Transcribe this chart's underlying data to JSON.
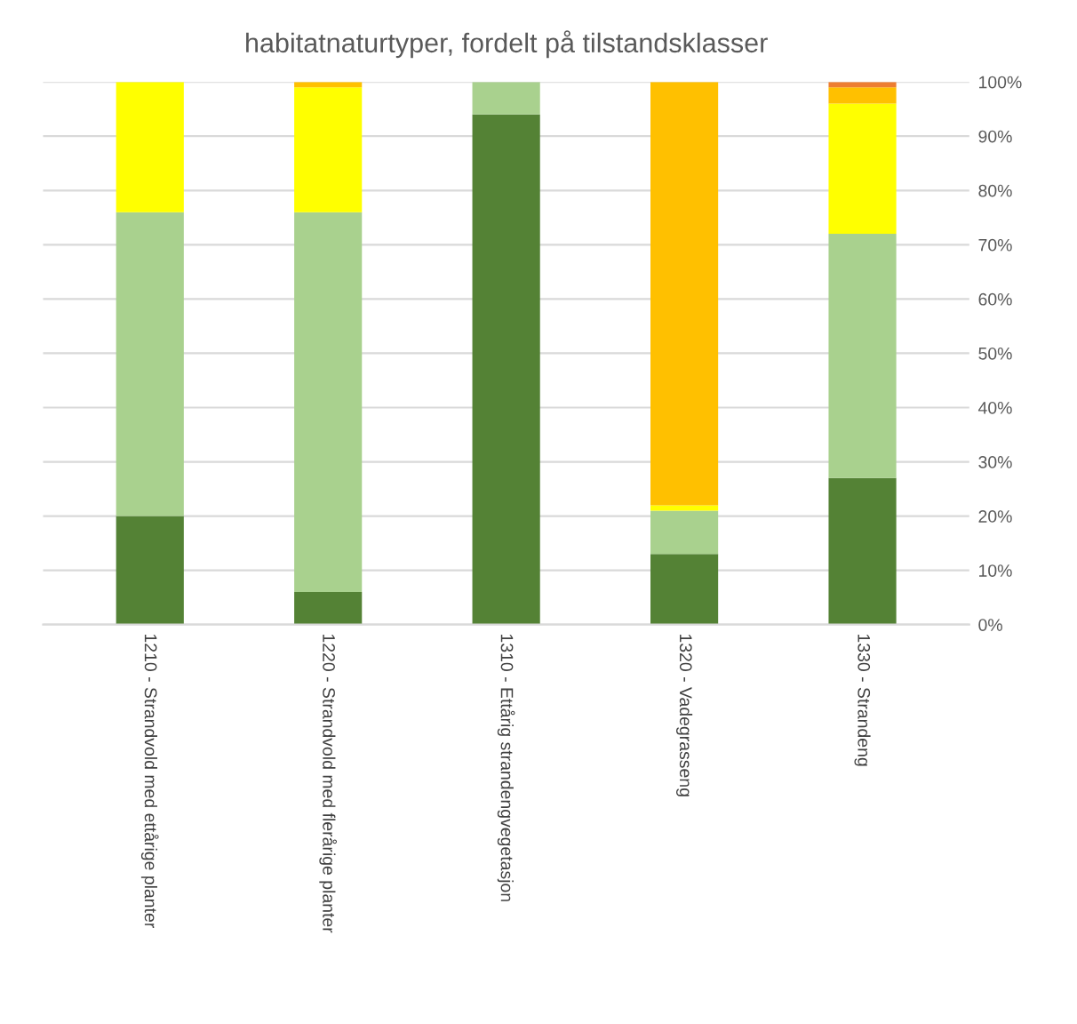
{
  "chart_data": {
    "type": "bar",
    "stacked": true,
    "title": "habitatnaturtyper, fordelt på tilstandsklasser",
    "categories": [
      "1210 - Strandvold med ettårige planter",
      "1220 - Strandvold med flerårige planter",
      "1310 - Ettårig strandengvegetasjon",
      "1320 - Vadegrasseng",
      "1330 - Strandeng"
    ],
    "series": [
      {
        "color": "#548235",
        "values": [
          20,
          6,
          94,
          13,
          27
        ]
      },
      {
        "color": "#a9d18e",
        "values": [
          56,
          70,
          6,
          8,
          45
        ]
      },
      {
        "color": "#ffff00",
        "values": [
          24,
          23,
          0,
          1,
          24
        ]
      },
      {
        "color": "#ffc000",
        "values": [
          0,
          1,
          0,
          78,
          3
        ]
      },
      {
        "color": "#ed7d31",
        "values": [
          0,
          0,
          0,
          0,
          1
        ]
      }
    ],
    "ylim": [
      0,
      100
    ],
    "yticks": [
      {
        "value": 0,
        "label": "0%"
      },
      {
        "value": 10,
        "label": "10%"
      },
      {
        "value": 20,
        "label": "20%"
      },
      {
        "value": 30,
        "label": "30%"
      },
      {
        "value": 40,
        "label": "40%"
      },
      {
        "value": 50,
        "label": "50%"
      },
      {
        "value": 60,
        "label": "60%"
      },
      {
        "value": 70,
        "label": "70%"
      },
      {
        "value": 80,
        "label": "80%"
      },
      {
        "value": 90,
        "label": "90%"
      },
      {
        "value": 100,
        "label": "100%"
      }
    ],
    "grid": "y",
    "legend": false
  }
}
